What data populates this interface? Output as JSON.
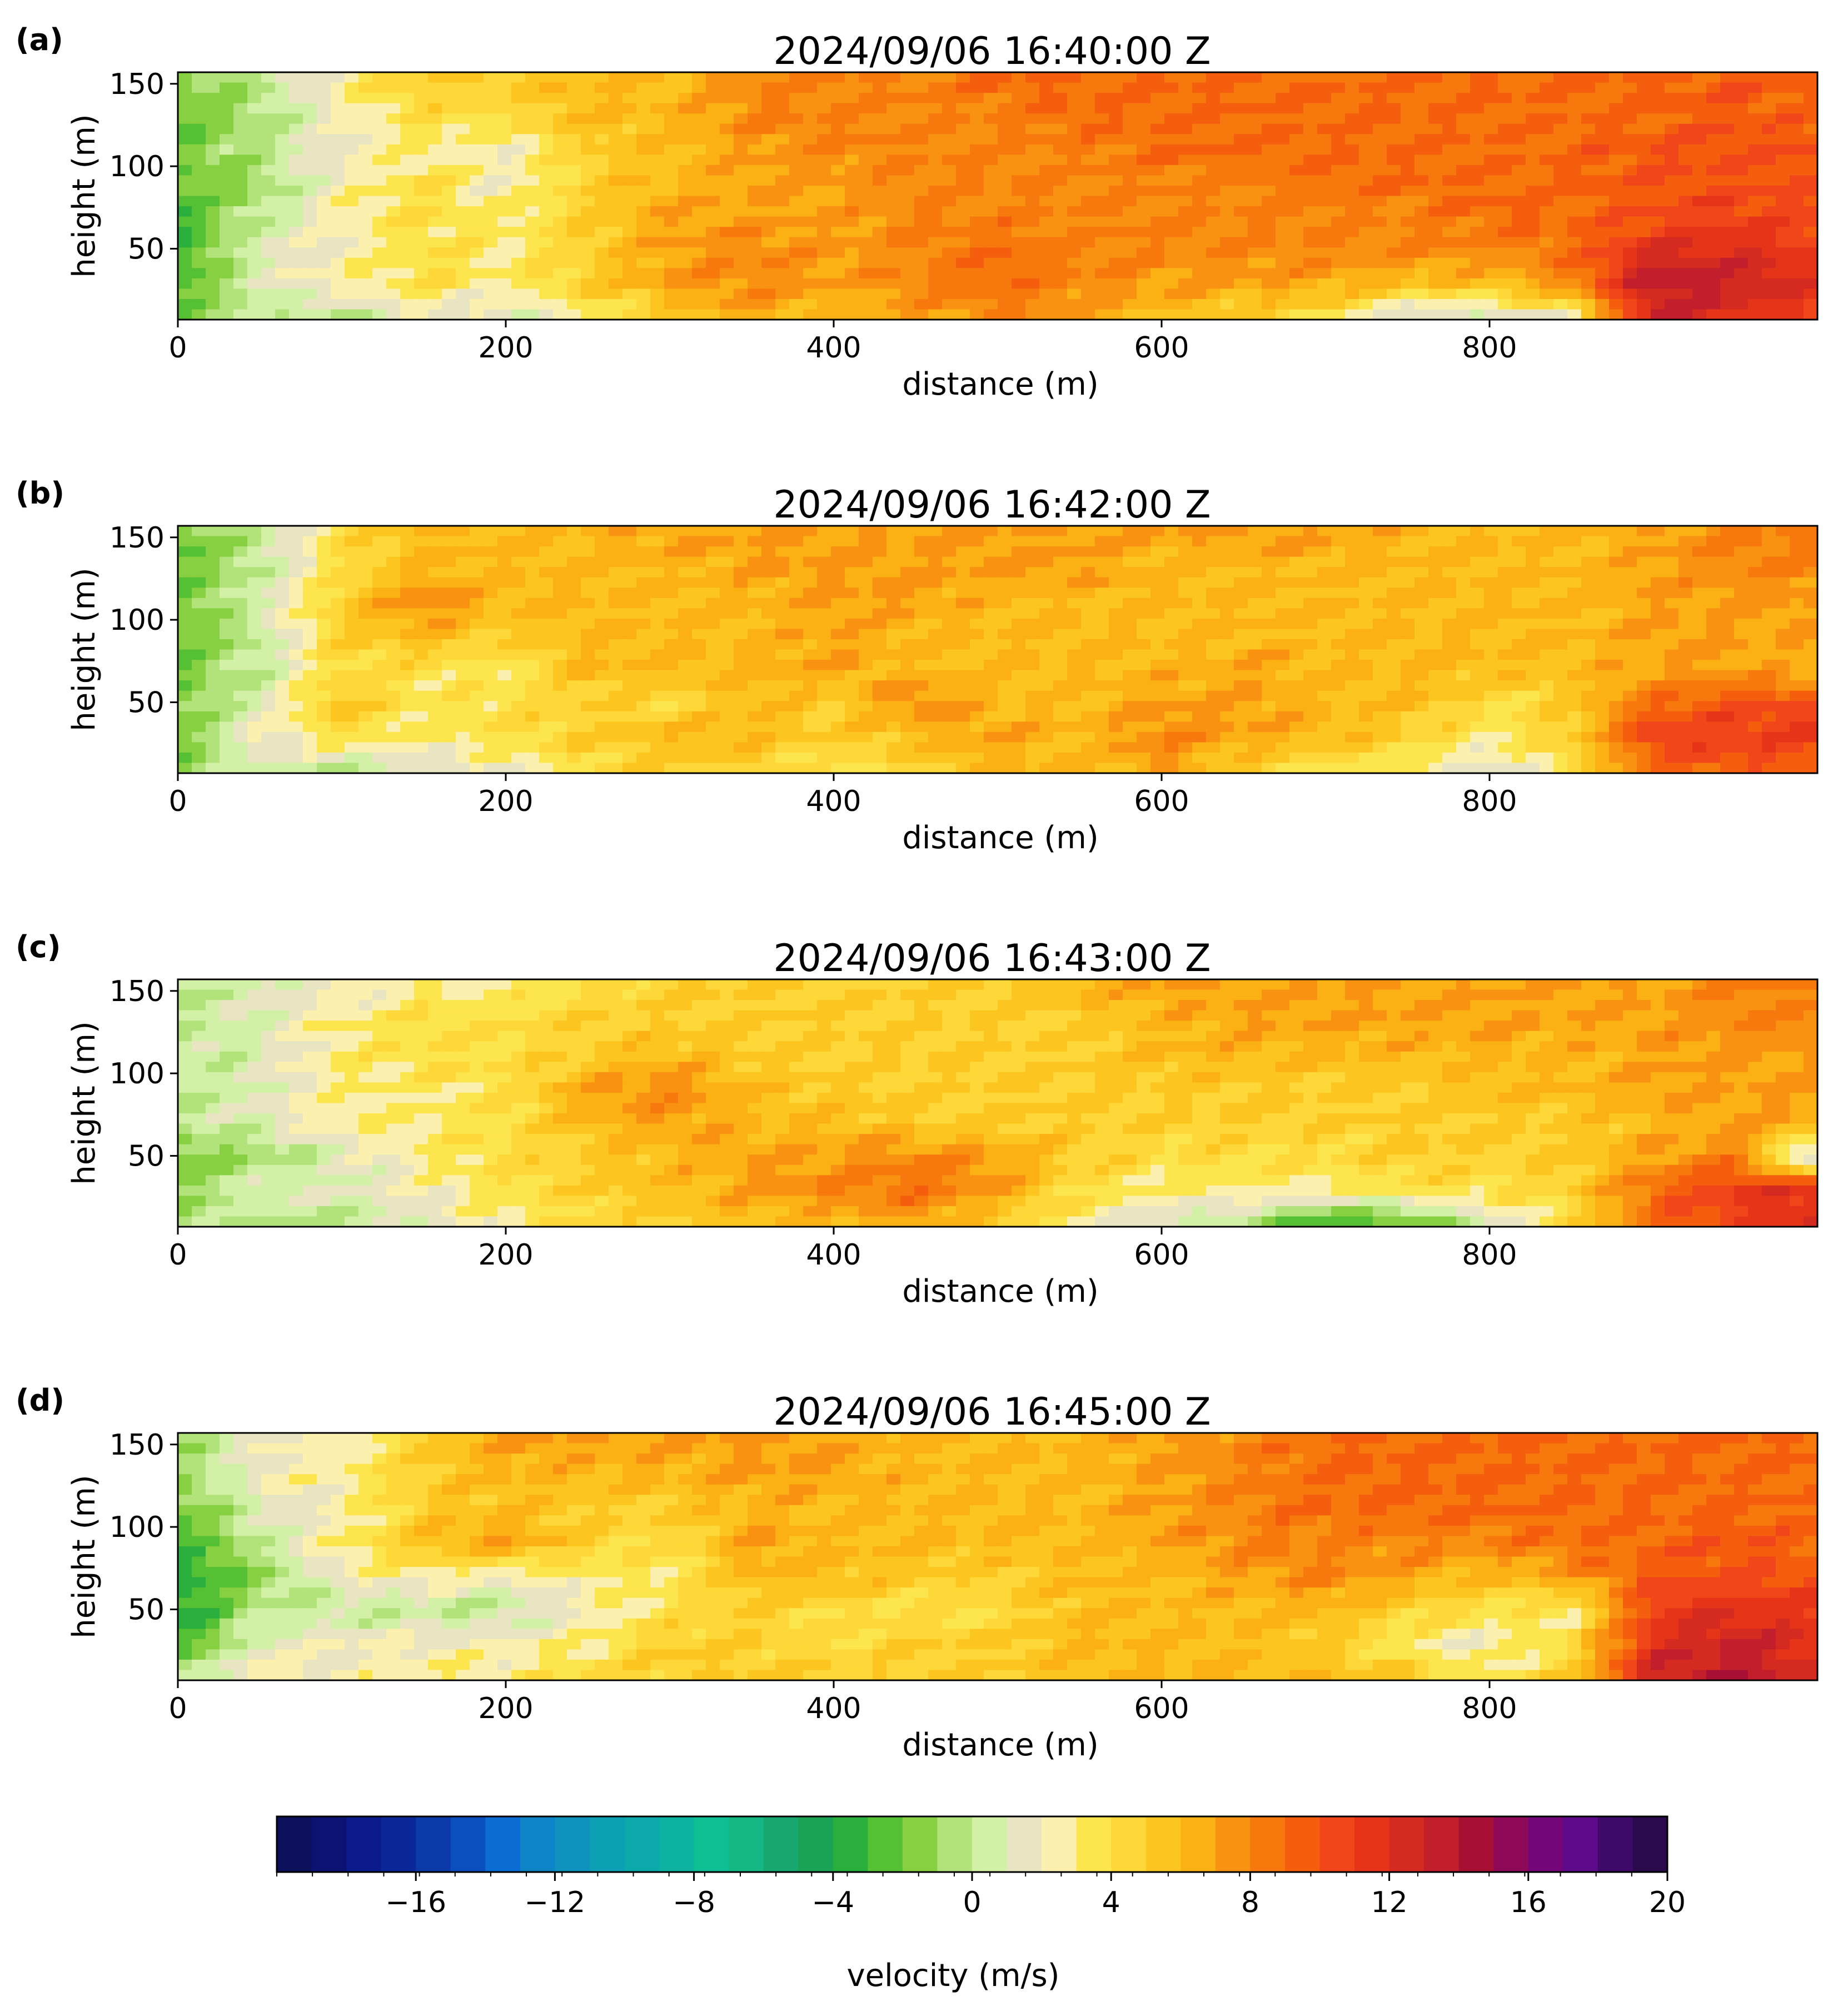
{
  "chart_data": {
    "type": "heatmap",
    "colorbar": {
      "label": "velocity (m/s)",
      "orientation": "horizontal",
      "min": -20,
      "max": 20,
      "levels": 39,
      "ticks": [
        -16,
        -12,
        -8,
        -4,
        0,
        4,
        8,
        12,
        16,
        20
      ],
      "tick_labels": [
        "−16",
        "−12",
        "−8",
        "−4",
        "0",
        "4",
        "8",
        "12",
        "16",
        "20"
      ],
      "colors": [
        "#0c0f5a",
        "#0b1272",
        "#0b1a8a",
        "#0a2798",
        "#0a3aa8",
        "#0a4fbd",
        "#0b6cd4",
        "#0d84c6",
        "#0d93bd",
        "#0d9fb3",
        "#0ca9ab",
        "#0cb3a0",
        "#0ebf93",
        "#15b784",
        "#18a86f",
        "#1aa355",
        "#2aaf3c",
        "#55c034",
        "#87d042",
        "#b2e27a",
        "#d2f0a6",
        "#e9e5c2",
        "#fbf0ae",
        "#fde54e",
        "#fdd838",
        "#fdc520",
        "#fbb014",
        "#f99210",
        "#f7780c",
        "#f45e0c",
        "#f0461a",
        "#e63418",
        "#d42a20",
        "#c21e2c",
        "#a80f34",
        "#8e0a58",
        "#74067a",
        "#5c0a8a",
        "#3e0a6a",
        "#2a0a4a"
      ]
    },
    "panels": [
      {
        "letter": "(a)",
        "title": "2024/09/06 16:40:00 Z",
        "xlabel": "distance (m)",
        "ylabel": "height (m)",
        "xlim": [
          0,
          1000
        ],
        "ylim": [
          7,
          157
        ],
        "xticks": [
          0,
          200,
          400,
          600,
          800
        ],
        "yticks": [
          50,
          100,
          150
        ],
        "field": {
          "x": [
            0,
            50,
            100,
            150,
            200,
            250,
            300,
            350,
            400,
            450,
            500,
            550,
            600,
            650,
            700,
            750,
            800,
            850,
            900,
            950,
            1000
          ],
          "y": [
            10,
            30,
            50,
            70,
            90,
            110,
            130,
            150
          ],
          "values": [
            [
              -2,
              0,
              0,
              2,
              1,
              3,
              5,
              7,
              6,
              7,
              8,
              7,
              6,
              5,
              4,
              1,
              1,
              3,
              13,
              12,
              11
            ],
            [
              -3,
              1,
              3,
              4,
              3,
              5,
              7,
              8,
              7,
              8,
              9,
              8,
              7,
              7,
              7,
              6,
              6,
              8,
              14,
              13,
              12
            ],
            [
              -3,
              1,
              2,
              4,
              3,
              5,
              7,
              8,
              7,
              8,
              9,
              8,
              8,
              8,
              8,
              8,
              8,
              9,
              12,
              12,
              11
            ],
            [
              -3,
              0,
              3,
              4,
              3,
              5,
              7,
              7,
              7,
              8,
              8,
              8,
              8,
              8,
              8,
              8,
              9,
              9,
              10,
              11,
              10
            ],
            [
              -2,
              -1,
              2,
              4,
              2,
              5,
              6,
              7,
              7,
              8,
              8,
              8,
              8,
              8,
              9,
              9,
              9,
              9,
              10,
              10,
              10
            ],
            [
              -2,
              0,
              2,
              3,
              2,
              5,
              6,
              7,
              8,
              8,
              8,
              8,
              9,
              9,
              9,
              9,
              9,
              9,
              10,
              10,
              10
            ],
            [
              -2,
              -1,
              2,
              4,
              4,
              6,
              6,
              8,
              8,
              8,
              8,
              9,
              9,
              9,
              9,
              9,
              9,
              9,
              9,
              10,
              9
            ],
            [
              -2,
              0,
              3,
              5,
              5,
              6,
              6,
              8,
              8,
              8,
              9,
              9,
              9,
              9,
              9,
              9,
              9,
              9,
              9,
              10,
              9
            ]
          ]
        }
      },
      {
        "letter": "(b)",
        "title": "2024/09/06 16:42:00 Z",
        "xlabel": "distance (m)",
        "ylabel": "height (m)",
        "xlim": [
          0,
          1000
        ],
        "ylim": [
          7,
          157
        ],
        "xticks": [
          0,
          200,
          400,
          600,
          800
        ],
        "yticks": [
          50,
          100,
          150
        ],
        "field": {
          "x": [
            0,
            50,
            100,
            150,
            200,
            250,
            300,
            350,
            400,
            450,
            500,
            550,
            600,
            650,
            700,
            750,
            800,
            850,
            900,
            950,
            1000
          ],
          "y": [
            10,
            30,
            50,
            70,
            90,
            110,
            130,
            150
          ],
          "values": [
            [
              -2,
              1,
              0,
              1,
              2,
              4,
              5,
              5,
              3,
              5,
              6,
              6,
              7,
              5,
              4,
              3,
              1,
              4,
              9,
              10,
              9
            ],
            [
              -2,
              2,
              4,
              3,
              4,
              5,
              6,
              6,
              5,
              6,
              7,
              6,
              8,
              7,
              6,
              5,
              3,
              5,
              11,
              11,
              11
            ],
            [
              -2,
              1,
              6,
              3,
              4,
              5,
              4,
              6,
              5,
              8,
              6,
              6,
              7,
              7,
              6,
              6,
              4,
              5,
              9,
              10,
              10
            ],
            [
              -2,
              0,
              4,
              4,
              3,
              6,
              6,
              6,
              7,
              6,
              6,
              6,
              6,
              7,
              6,
              6,
              6,
              6,
              7,
              7,
              6
            ],
            [
              -2,
              0,
              5,
              6,
              5,
              6,
              6,
              6,
              7,
              6,
              6,
              6,
              6,
              6,
              6,
              6,
              6,
              6,
              7,
              7,
              7
            ],
            [
              -2,
              1,
              5,
              8,
              6,
              6,
              6,
              6,
              7,
              7,
              6,
              6,
              6,
              6,
              6,
              6,
              6,
              6,
              7,
              7,
              7
            ],
            [
              -2,
              0,
              4,
              6,
              6,
              6,
              6,
              7,
              7,
              7,
              7,
              7,
              6,
              6,
              6,
              6,
              6,
              6,
              7,
              8,
              8
            ],
            [
              -2,
              0,
              4,
              6,
              6,
              6,
              7,
              7,
              7,
              7,
              7,
              7,
              7,
              7,
              7,
              6,
              6,
              6,
              7,
              8,
              8
            ]
          ]
        }
      },
      {
        "letter": "(c)",
        "title": "2024/09/06 16:43:00 Z",
        "xlabel": "distance (m)",
        "ylabel": "height (m)",
        "xlim": [
          0,
          1000
        ],
        "ylim": [
          7,
          157
        ],
        "xticks": [
          0,
          200,
          400,
          600,
          800
        ],
        "yticks": [
          50,
          100,
          150
        ],
        "field": {
          "x": [
            0,
            50,
            100,
            150,
            200,
            250,
            300,
            350,
            400,
            450,
            500,
            550,
            600,
            650,
            700,
            750,
            800,
            850,
            900,
            950,
            1000
          ],
          "y": [
            10,
            30,
            50,
            70,
            90,
            110,
            130,
            150
          ],
          "values": [
            [
              -1,
              0,
              0,
              1,
              3,
              4,
              5,
              6,
              6,
              7,
              5,
              3,
              1,
              0,
              -3,
              -2,
              1,
              4,
              9,
              11,
              12
            ],
            [
              -1,
              1,
              1,
              2,
              4,
              5,
              6,
              7,
              8,
              9,
              7,
              4,
              3,
              3,
              3,
              4,
              4,
              5,
              9,
              11,
              12
            ],
            [
              -2,
              -1,
              1,
              3,
              4,
              5,
              6,
              7,
              7,
              8,
              7,
              5,
              4,
              4,
              4,
              5,
              5,
              5,
              7,
              8,
              -1
            ],
            [
              0,
              1,
              3,
              3,
              4,
              6,
              7,
              6,
              6,
              5,
              5,
              5,
              5,
              5,
              5,
              5,
              5,
              5,
              6,
              7,
              7
            ],
            [
              0,
              1,
              3,
              3,
              4,
              7,
              8,
              6,
              5,
              5,
              5,
              5,
              5,
              5,
              5,
              5,
              6,
              6,
              7,
              7,
              7
            ],
            [
              0,
              1,
              3,
              4,
              4,
              5,
              6,
              5,
              5,
              5,
              5,
              5,
              6,
              6,
              6,
              6,
              6,
              6,
              7,
              7,
              7
            ],
            [
              0,
              1,
              3,
              4,
              4,
              5,
              5,
              5,
              5,
              5,
              5,
              5,
              6,
              7,
              7,
              7,
              7,
              7,
              7,
              8,
              8
            ],
            [
              0,
              1,
              2,
              3,
              3,
              4,
              5,
              5,
              5,
              5,
              5,
              6,
              7,
              7,
              7,
              7,
              7,
              7,
              7,
              8,
              8
            ]
          ]
        }
      },
      {
        "letter": "(d)",
        "title": "2024/09/06 16:45:00 Z",
        "xlabel": "distance (m)",
        "ylabel": "height (m)",
        "xlim": [
          0,
          1000
        ],
        "ylim": [
          7,
          157
        ],
        "xticks": [
          0,
          200,
          400,
          600,
          800
        ],
        "yticks": [
          50,
          100,
          150
        ],
        "field": {
          "x": [
            0,
            50,
            100,
            150,
            200,
            250,
            300,
            350,
            400,
            450,
            500,
            550,
            600,
            650,
            700,
            750,
            800,
            850,
            900,
            950,
            1000
          ],
          "y": [
            10,
            30,
            50,
            70,
            90,
            110,
            130,
            150
          ],
          "values": [
            [
              -1,
              3,
              2,
              3,
              3,
              4,
              5,
              5,
              5,
              5,
              5,
              6,
              6,
              6,
              6,
              5,
              3,
              5,
              13,
              14,
              12
            ],
            [
              -3,
              1,
              2,
              2,
              2,
              3,
              5,
              5,
              4,
              5,
              5,
              6,
              6,
              6,
              5,
              3,
              2,
              4,
              12,
              13,
              12
            ],
            [
              -4,
              0,
              0,
              0,
              0,
              2,
              4,
              5,
              4,
              4,
              4,
              6,
              6,
              6,
              6,
              5,
              4,
              3,
              11,
              12,
              11
            ],
            [
              -4,
              -1,
              2,
              3,
              2,
              3,
              3,
              6,
              6,
              5,
              5,
              6,
              6,
              7,
              8,
              7,
              6,
              7,
              10,
              10,
              10
            ],
            [
              -3,
              0,
              3,
              6,
              7,
              5,
              4,
              7,
              6,
              6,
              6,
              6,
              7,
              8,
              8,
              8,
              8,
              9,
              9,
              10,
              9
            ],
            [
              -2,
              1,
              2,
              5,
              6,
              5,
              5,
              6,
              6,
              6,
              6,
              6,
              7,
              8,
              9,
              9,
              9,
              9,
              9,
              9,
              9
            ],
            [
              -1,
              2,
              3,
              5,
              6,
              6,
              6,
              7,
              7,
              6,
              6,
              6,
              7,
              8,
              9,
              9,
              9,
              9,
              9,
              9,
              9
            ],
            [
              -1,
              2,
              2,
              5,
              7,
              7,
              7,
              7,
              7,
              6,
              6,
              6,
              7,
              8,
              9,
              9,
              9,
              9,
              9,
              9,
              9
            ]
          ]
        }
      }
    ]
  }
}
